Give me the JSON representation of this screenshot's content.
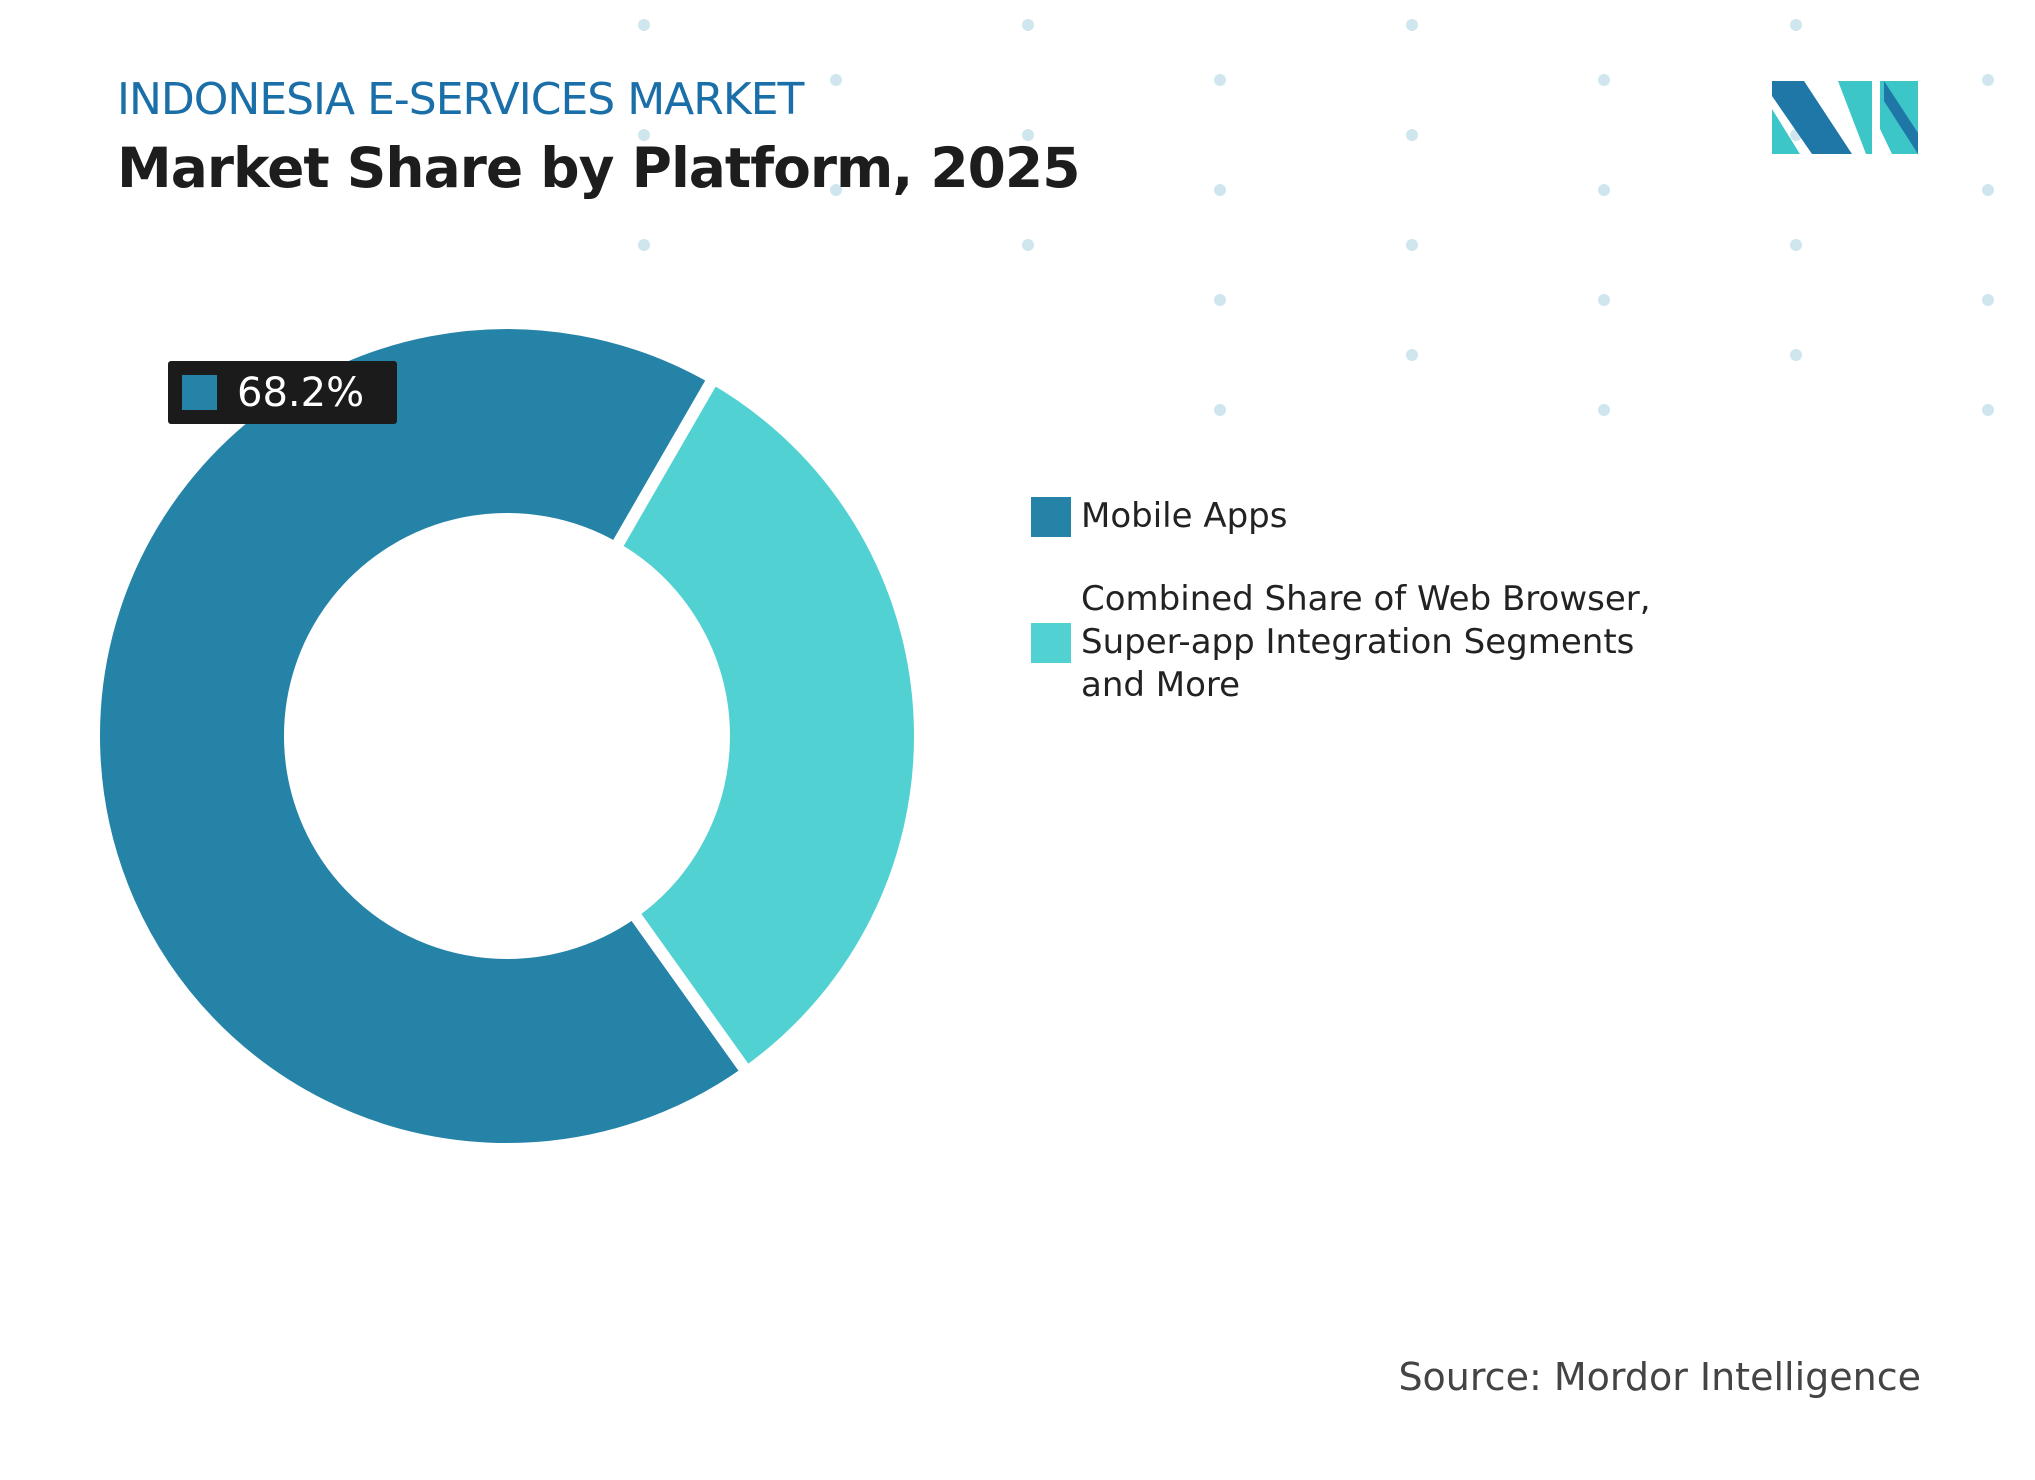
{
  "header": {
    "subtitle": "INDONESIA E-SERVICES MARKET",
    "title": "Market Share by Platform, 2025"
  },
  "chart_data": {
    "type": "pie",
    "style": "donut",
    "categories": [
      "Mobile Apps",
      "Combined Share of Web Browser, Super-app Integration Segments and More"
    ],
    "values": [
      68.2,
      31.8
    ],
    "colors": [
      "#2683a8",
      "#52d1d3"
    ],
    "data_labels": [
      "68.2%"
    ],
    "legend_position": "right"
  },
  "source": "Source: Mordor Intelligence",
  "logo": {
    "text": "MI",
    "colors": [
      "#1f77a8",
      "#3cc6c8"
    ]
  }
}
